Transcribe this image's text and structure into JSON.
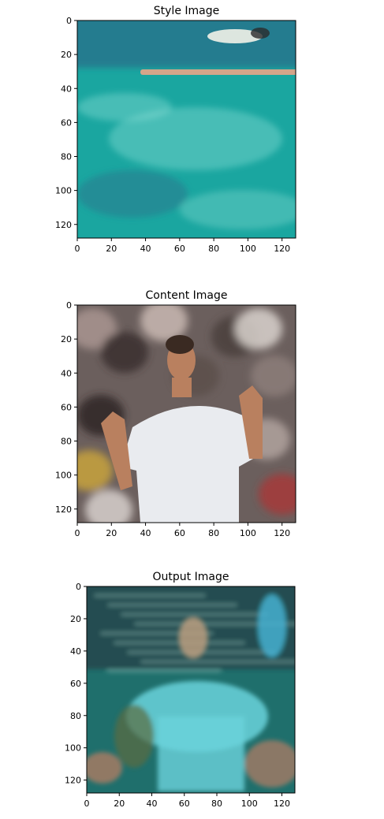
{
  "chart_data": [
    {
      "type": "image",
      "title": "Style Image",
      "xlabel": "",
      "ylabel": "",
      "xlim": [
        0,
        128
      ],
      "ylim": [
        128,
        0
      ],
      "x_ticks": [
        0,
        20,
        40,
        60,
        80,
        100,
        120
      ],
      "y_ticks": [
        0,
        20,
        40,
        60,
        80,
        100,
        120
      ],
      "grid": false,
      "colors": {
        "base": "#1aa6a0",
        "deep": "#2a6f8a",
        "highlight": "#9ee7df",
        "object": "#e9a587"
      }
    },
    {
      "type": "image",
      "title": "Content Image",
      "xlabel": "",
      "ylabel": "",
      "xlim": [
        0,
        128
      ],
      "ylim": [
        128,
        0
      ],
      "x_ticks": [
        0,
        20,
        40,
        60,
        80,
        100,
        120
      ],
      "y_ticks": [
        0,
        20,
        40,
        60,
        80,
        100,
        120
      ],
      "grid": false,
      "colors": {
        "crowd": "#6b5f5d",
        "shirt": "#e9ebef",
        "skin": "#b9805f",
        "hair": "#3a2a22"
      }
    },
    {
      "type": "image",
      "title": "Output Image",
      "xlabel": "",
      "ylabel": "",
      "xlim": [
        0,
        128
      ],
      "ylim": [
        128,
        0
      ],
      "x_ticks": [
        0,
        20,
        40,
        60,
        80,
        100,
        120
      ],
      "y_ticks": [
        0,
        20,
        40,
        60,
        80,
        100,
        120
      ],
      "grid": false,
      "colors": {
        "base": "#1f6f6c",
        "figure": "#6ad3dc",
        "accent": "#9d7a64",
        "dark": "#24323a"
      }
    }
  ]
}
